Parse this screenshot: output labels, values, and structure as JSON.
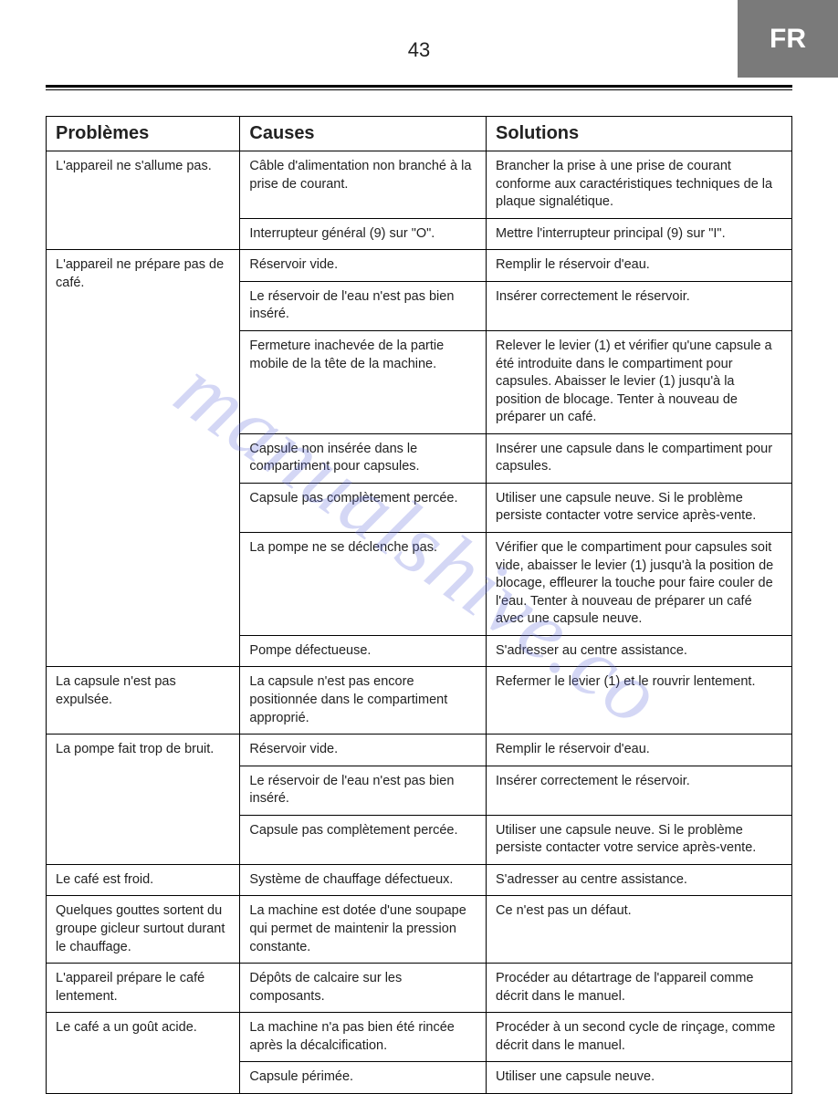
{
  "page_number": "43",
  "lang_tab": "FR",
  "watermark": "manualshive.co",
  "headers": {
    "c0": "Problèmes",
    "c1": "Causes",
    "c2": "Solutions"
  },
  "rows": [
    {
      "p": "L'appareil ne s'allume pas.",
      "p_span": 2,
      "c": "Câble d'alimentation non branché à la prise de courant.",
      "s": "Brancher la prise à une prise de courant conforme aux caractéristiques techniques de la plaque signalétique."
    },
    {
      "c": "Interrupteur général (9) sur \"O\".",
      "s": "Mettre l'interrupteur principal (9) sur \"I\"."
    },
    {
      "p": "L'appareil ne prépare pas de café.",
      "p_span": 7,
      "c": "Réservoir vide.",
      "s": "Remplir le réservoir d'eau."
    },
    {
      "c": "Le réservoir de l'eau n'est pas bien inséré.",
      "s": "Insérer correctement le réservoir."
    },
    {
      "c": "Fermeture inachevée de la partie mobile de la tête de la machine.",
      "s": "Relever le levier (1) et vérifier qu'une capsule a été introduite dans le compartiment pour capsules. Abaisser le levier (1) jusqu'à la position de blocage. Tenter à nouveau de préparer un café."
    },
    {
      "c": "Capsule non insérée dans le compartiment pour capsules.",
      "s": "Insérer une capsule dans le compartiment pour capsules."
    },
    {
      "c": "Capsule pas complètement percée.",
      "s": "Utiliser une capsule neuve. Si le problème persiste contacter votre service après-vente."
    },
    {
      "c": "La pompe ne se déclenche pas.",
      "s": "Vérifier que le compartiment pour capsules soit vide, abaisser le levier (1) jusqu'à la position de blocage, effleurer la touche pour faire couler de l'eau. Tenter à nouveau de préparer un café avec une capsule neuve."
    },
    {
      "c": "Pompe défectueuse.",
      "s": "S'adresser au centre assistance."
    },
    {
      "p": "La capsule n'est pas expulsée.",
      "p_span": 1,
      "c": "La capsule n'est pas encore positionnée dans le compartiment approprié.",
      "s": "Refermer le levier (1) et le rouvrir lentement."
    },
    {
      "p": "La pompe fait trop de bruit.",
      "p_span": 3,
      "c": "Réservoir vide.",
      "s": "Remplir le réservoir d'eau."
    },
    {
      "c": "Le réservoir de l'eau n'est pas bien inséré.",
      "s": "Insérer correctement le réservoir."
    },
    {
      "c": "Capsule pas complètement percée.",
      "s": "Utiliser une capsule neuve. Si le problème persiste contacter votre service après-vente."
    },
    {
      "p": "Le café est froid.",
      "p_span": 1,
      "c": "Système de chauffage défectueux.",
      "s": "S'adresser au centre assistance."
    },
    {
      "p": "Quelques gouttes sortent du groupe gicleur surtout durant le chauffage.",
      "p_span": 1,
      "c": "La machine est dotée d'une soupape qui permet de maintenir la pression constante.",
      "s": "Ce n'est pas un défaut."
    },
    {
      "p": "L'appareil prépare le café lentement.",
      "p_span": 1,
      "c": "Dépôts de calcaire sur les composants.",
      "s": "Procéder au détartrage de l'appareil comme décrit dans le manuel."
    },
    {
      "p": "Le café a un goût acide.",
      "p_span": 2,
      "c": "La machine n'a pas bien été rincée après la décalcification.",
      "s": "Procéder à un second cycle de rinçage, comme décrit dans le manuel."
    },
    {
      "c": "Capsule périmée.",
      "s": "Utiliser une capsule neuve."
    }
  ]
}
